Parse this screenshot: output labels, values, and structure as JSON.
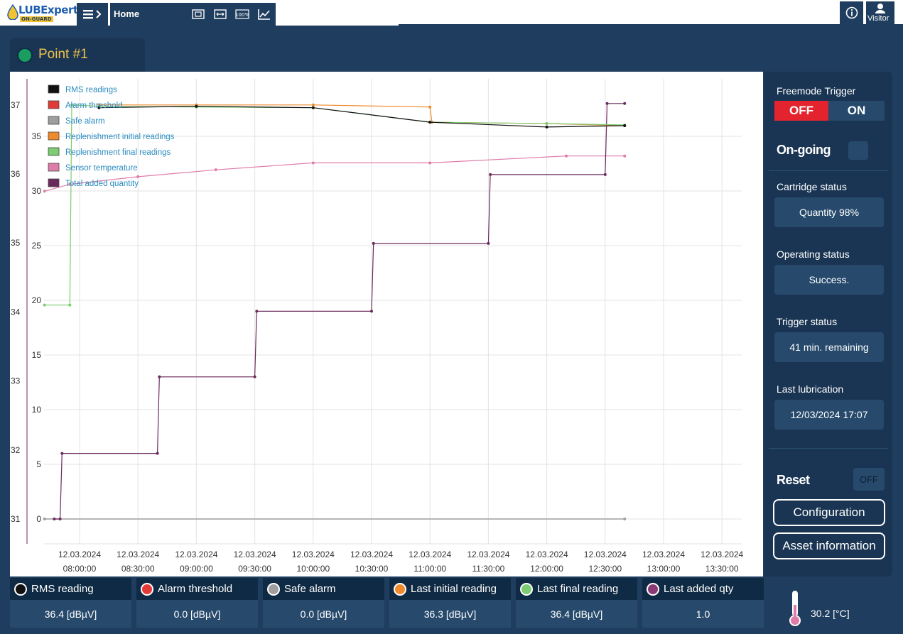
{
  "app": {
    "brand": "LUBExpert",
    "brand_sub": "ON-GUARD",
    "home_label": "Home",
    "visitor_label": "Visitor"
  },
  "point": {
    "title": "Point #1",
    "status_color": "#1a9d5e"
  },
  "legend": [
    {
      "label": "RMS readings",
      "color": "#111111"
    },
    {
      "label": "Alarm threshold",
      "color": "#e23a36"
    },
    {
      "label": "Safe alarm",
      "color": "#9e9e9e"
    },
    {
      "label": "Replenishment initial readings",
      "color": "#f08a2c"
    },
    {
      "label": "Replenishment final readings",
      "color": "#7ccc72"
    },
    {
      "label": "Sensor temperature",
      "color": "#e07ca9"
    },
    {
      "label": "Total added quantity",
      "color": "#6a2a5c"
    }
  ],
  "chart_data": {
    "type": "line",
    "x_ticks": [
      [
        "12.03.2024",
        "08:00:00"
      ],
      [
        "12.03.2024",
        "08:30:00"
      ],
      [
        "12.03.2024",
        "09:00:00"
      ],
      [
        "12.03.2024",
        "09:30:00"
      ],
      [
        "12.03.2024",
        "10:00:00"
      ],
      [
        "12.03.2024",
        "10:30:00"
      ],
      [
        "12.03.2024",
        "11:00:00"
      ],
      [
        "12.03.2024",
        "11:30:00"
      ],
      [
        "12.03.2024",
        "12:00:00"
      ],
      [
        "12.03.2024",
        "12:30:00"
      ],
      [
        "12.03.2024",
        "13:00:00"
      ],
      [
        "12.03.2024",
        "13:30:00"
      ]
    ],
    "y_left_outer": {
      "ticks": [
        "31",
        "32",
        "33",
        "34",
        "35",
        "36",
        "37"
      ],
      "range": [
        31,
        37
      ]
    },
    "y_left_inner": {
      "ticks": [
        "0",
        "5",
        "10",
        "15",
        "20",
        "25",
        "30",
        "35"
      ],
      "range": [
        0,
        35
      ]
    },
    "series": [
      {
        "name": "Total added quantity",
        "color": "#6a2a5c",
        "points": [
          [
            "07:47",
            0
          ],
          [
            "07:50",
            0
          ],
          [
            "07:51",
            6
          ],
          [
            "08:40",
            6
          ],
          [
            "08:41",
            13
          ],
          [
            "09:30",
            13
          ],
          [
            "09:31",
            19
          ],
          [
            "10:30",
            19
          ],
          [
            "10:31",
            25.2
          ],
          [
            "11:30",
            25.2
          ],
          [
            "11:31",
            31.5
          ],
          [
            "12:30",
            31.5
          ],
          [
            "12:31",
            38
          ],
          [
            "12:40",
            38
          ]
        ]
      },
      {
        "name": "Sensor temperature",
        "color": "#e07ca9",
        "points": [
          [
            "07:42",
            35.75
          ],
          [
            "07:55",
            35.85
          ],
          [
            "08:30",
            35.96
          ],
          [
            "09:10",
            36.06
          ],
          [
            "10:00",
            36.16
          ],
          [
            "11:00",
            36.16
          ],
          [
            "12:10",
            36.26
          ],
          [
            "12:40",
            36.26
          ]
        ]
      },
      {
        "name": "Replenishment final readings",
        "color": "#7ccc72",
        "points": [
          [
            "07:42",
            34.1
          ],
          [
            "07:55",
            34.1
          ],
          [
            "07:56",
            37.0
          ],
          [
            "08:10",
            36.98
          ],
          [
            "09:00",
            36.97
          ],
          [
            "10:00",
            36.96
          ],
          [
            "11:00",
            36.75
          ],
          [
            "12:00",
            36.73
          ],
          [
            "12:40",
            36.71
          ]
        ]
      },
      {
        "name": "Replenishment initial readings",
        "color": "#f08a2c",
        "points": [
          [
            "08:10",
            37.0
          ],
          [
            "09:00",
            37.0
          ],
          [
            "10:00",
            37.0
          ],
          [
            "11:00",
            36.97
          ],
          [
            "11:01",
            36.75
          ],
          [
            "12:00",
            36.73
          ],
          [
            "12:40",
            36.7
          ]
        ]
      },
      {
        "name": "RMS readings",
        "color": "#111111",
        "points": [
          [
            "08:10",
            36.96
          ],
          [
            "09:00",
            36.98
          ],
          [
            "10:00",
            36.96
          ],
          [
            "11:00",
            36.75
          ],
          [
            "12:00",
            36.68
          ],
          [
            "12:40",
            36.7
          ]
        ]
      },
      {
        "name": "Safe alarm",
        "color": "#9e9e9e",
        "points": [
          [
            "07:42",
            31
          ],
          [
            "12:40",
            31
          ]
        ]
      }
    ]
  },
  "right_panel": {
    "freemode_label": "Freemode Trigger",
    "toggle_off": "OFF",
    "toggle_on": "ON",
    "ongoing_label": "On-going",
    "cartridge_label": "Cartridge status",
    "cartridge_value": "Quantity 98%",
    "operating_label": "Operating status",
    "operating_value": "Success.",
    "trigger_label": "Trigger status",
    "trigger_value": "41 min. remaining",
    "lastlub_label": "Last lubrication",
    "lastlub_value": "12/03/2024 17:07",
    "reset_label": "Reset",
    "reset_value": "OFF",
    "config_button": "Configuration",
    "asset_button": "Asset information"
  },
  "status_bar": [
    {
      "label": "RMS reading",
      "value": "36.4 [dBµV]",
      "color": "#111111"
    },
    {
      "label": "Alarm threshold",
      "value": "0.0 [dBµV]",
      "color": "#e23a36"
    },
    {
      "label": "Safe alarm",
      "value": "0.0 [dBµV]",
      "color": "#9e9e9e"
    },
    {
      "label": "Last initial reading",
      "value": "36.3 [dBµV]",
      "color": "#f08a2c"
    },
    {
      "label": "Last final reading",
      "value": "36.4 [dBµV]",
      "color": "#7ccc72"
    },
    {
      "label": "Last added qty",
      "value": "1.0",
      "color": "#8b3a76"
    }
  ],
  "temperature": {
    "value": "30.2 [°C]"
  }
}
